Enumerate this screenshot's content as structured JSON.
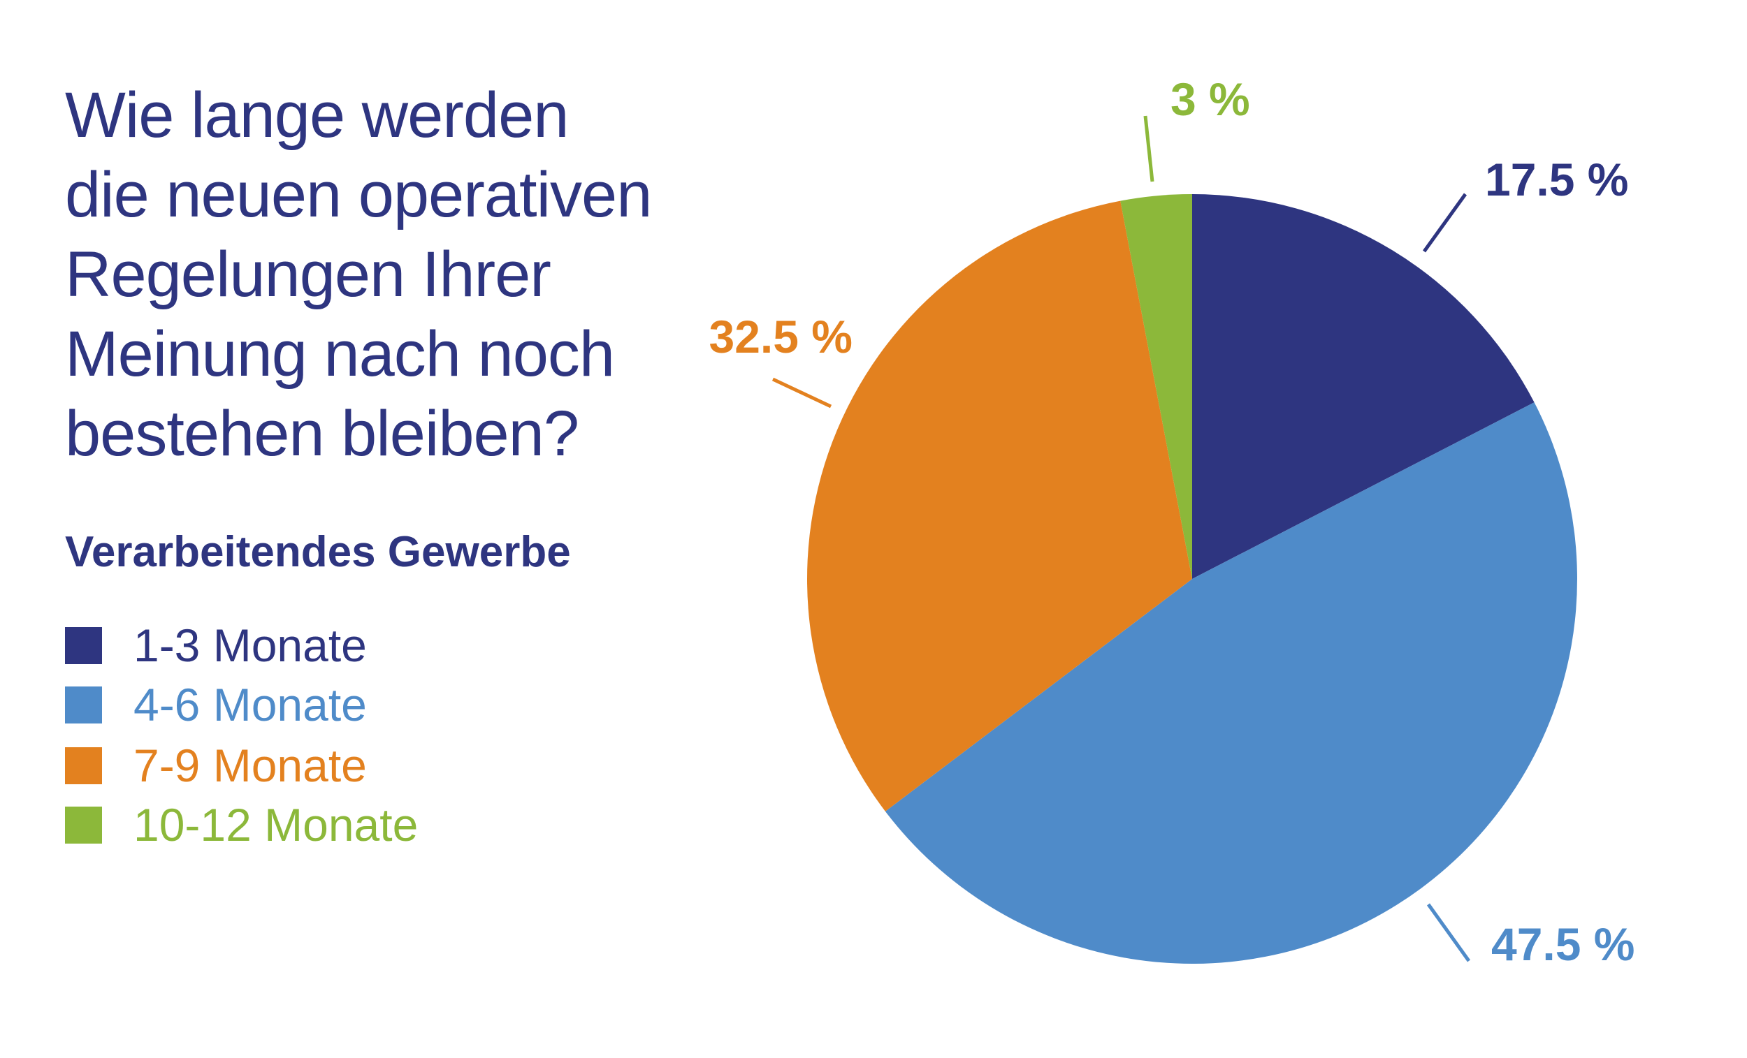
{
  "title_lines": [
    "Wie lange werden",
    "die neuen operativen",
    "Regelungen Ihrer",
    "Meinung nach noch",
    "bestehen bleiben?"
  ],
  "subtitle": "Verarbeitendes Gewerbe",
  "chart_data": {
    "type": "pie",
    "title": "Wie lange werden die neuen operativen Regelungen Ihrer Meinung nach noch bestehen bleiben?",
    "subtitle": "Verarbeitendes Gewerbe",
    "legend_position": "left",
    "start_angle": "12 o'clock, clockwise",
    "categories": [
      "1-3 Monate",
      "4-6 Monate",
      "7-9 Monate",
      "10-12 Monate"
    ],
    "values": [
      17.5,
      47.5,
      32.5,
      3
    ],
    "data_labels": [
      "17.5 %",
      "47.5 %",
      "32.5 %",
      "3 %"
    ],
    "colors": [
      "#2e3580",
      "#4f8bc9",
      "#e3811f",
      "#8cb83a"
    ]
  }
}
